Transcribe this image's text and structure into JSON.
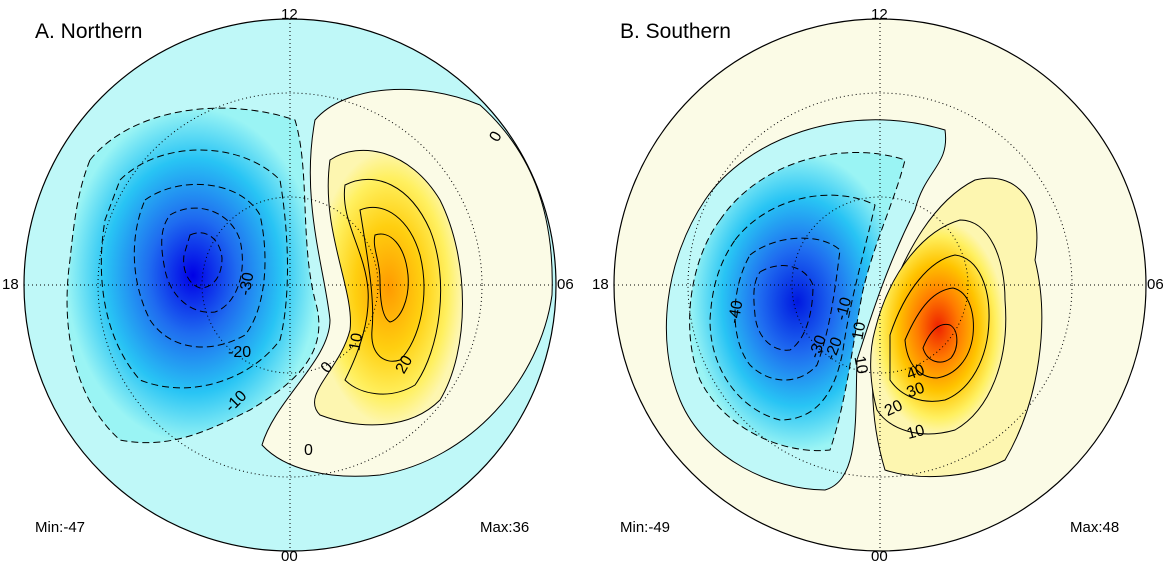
{
  "chart_data": [
    {
      "type": "polar-contour",
      "title": "A. Northern",
      "clock_labels": {
        "top": "12",
        "left": "18",
        "right": "06",
        "bottom": "00"
      },
      "min_label": "Min:-47",
      "max_label": "Max:36",
      "min": -47,
      "max": 36,
      "contour_interval": 5,
      "contour_labels": [
        "0",
        "-30",
        "-20",
        "-10",
        "10",
        "20",
        "0",
        "0"
      ],
      "colors": {
        "background": "#f8fce8",
        "negative": "#9af4f4",
        "negative_peak": "#0000e6",
        "positive": "#fdf6b0",
        "positive_peak": "#ff9a00"
      }
    },
    {
      "type": "polar-contour",
      "title": "B. Southern",
      "clock_labels": {
        "top": "12",
        "left": "18",
        "right": "06",
        "bottom": "00"
      },
      "min_label": "Min:-49",
      "max_label": "Max:48",
      "min": -49,
      "max": 48,
      "contour_interval": 5,
      "contour_labels": [
        "-40",
        "-30",
        "-20",
        "-10",
        "10",
        "10",
        "20",
        "30",
        "40",
        "10"
      ],
      "colors": {
        "background": "#f8fce8",
        "negative": "#9af4f4",
        "negative_peak": "#0018e0",
        "positive": "#fdf6b0",
        "positive_peak": "#ee2200"
      }
    }
  ]
}
